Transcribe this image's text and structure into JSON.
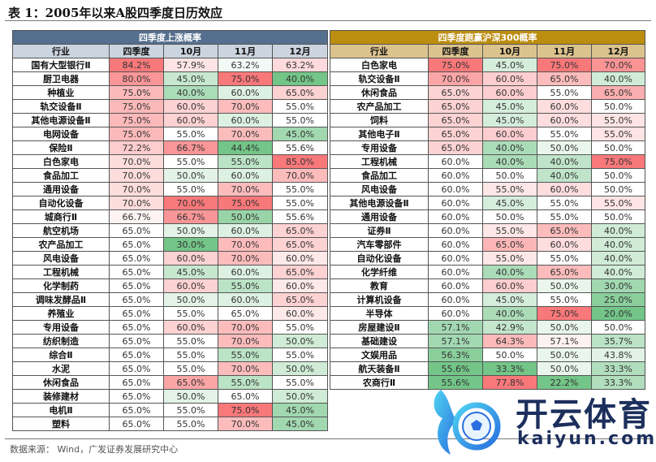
{
  "title": "表 1：2005年以来A股四季度日历效应",
  "columns": [
    "行业",
    "四季度",
    "10月",
    "11月",
    "12月"
  ],
  "left_table": {
    "band": "四季度上涨概率",
    "rows": [
      [
        "国有大型银行Ⅱ",
        "84.2%",
        "57.9%",
        "63.2%",
        "63.2%"
      ],
      [
        "厨卫电器",
        "80.0%",
        "45.0%",
        "75.0%",
        "40.0%"
      ],
      [
        "种植业",
        "75.0%",
        "40.0%",
        "60.0%",
        "65.0%"
      ],
      [
        "轨交设备Ⅱ",
        "75.0%",
        "60.0%",
        "70.0%",
        "55.0%"
      ],
      [
        "其他电源设备Ⅱ",
        "75.0%",
        "60.0%",
        "60.0%",
        "55.0%"
      ],
      [
        "电网设备",
        "75.0%",
        "55.0%",
        "70.0%",
        "45.0%"
      ],
      [
        "保险Ⅱ",
        "72.2%",
        "66.7%",
        "44.4%",
        "55.6%"
      ],
      [
        "白色家电",
        "70.0%",
        "55.0%",
        "55.0%",
        "85.0%"
      ],
      [
        "食品加工",
        "70.0%",
        "50.0%",
        "60.0%",
        "70.0%"
      ],
      [
        "通用设备",
        "70.0%",
        "55.0%",
        "70.0%",
        "55.0%"
      ],
      [
        "自动化设备",
        "70.0%",
        "70.0%",
        "75.0%",
        "55.0%"
      ],
      [
        "城商行Ⅱ",
        "66.7%",
        "66.7%",
        "50.0%",
        "55.6%"
      ],
      [
        "航空机场",
        "65.0%",
        "50.0%",
        "60.0%",
        "65.0%"
      ],
      [
        "农产品加工",
        "65.0%",
        "30.0%",
        "70.0%",
        "65.0%"
      ],
      [
        "风电设备",
        "65.0%",
        "60.0%",
        "70.0%",
        "60.0%"
      ],
      [
        "工程机械",
        "65.0%",
        "45.0%",
        "60.0%",
        "65.0%"
      ],
      [
        "化学制药",
        "65.0%",
        "60.0%",
        "55.0%",
        "60.0%"
      ],
      [
        "调味发酵品Ⅱ",
        "65.0%",
        "50.0%",
        "60.0%",
        "65.0%"
      ],
      [
        "养殖业",
        "65.0%",
        "55.0%",
        "65.0%",
        "60.0%"
      ],
      [
        "专用设备",
        "65.0%",
        "60.0%",
        "70.0%",
        "55.0%"
      ],
      [
        "纺织制造",
        "65.0%",
        "55.0%",
        "70.0%",
        "50.0%"
      ],
      [
        "综合Ⅱ",
        "65.0%",
        "55.0%",
        "55.0%",
        "55.0%"
      ],
      [
        "水泥",
        "65.0%",
        "55.0%",
        "70.0%",
        "50.0%"
      ],
      [
        "休闲食品",
        "65.0%",
        "65.0%",
        "55.0%",
        "55.0%"
      ],
      [
        "装修建材",
        "65.0%",
        "50.0%",
        "65.0%",
        "50.0%"
      ],
      [
        "电机Ⅱ",
        "65.0%",
        "55.0%",
        "75.0%",
        "45.0%"
      ],
      [
        "塑料",
        "65.0%",
        "55.0%",
        "70.0%",
        "45.0%"
      ]
    ]
  },
  "right_table": {
    "band": "四季度跑赢沪深300概率",
    "rows": [
      [
        "白色家电",
        "75.0%",
        "45.0%",
        "75.0%",
        "70.0%"
      ],
      [
        "轨交设备Ⅱ",
        "70.0%",
        "60.0%",
        "65.0%",
        "40.0%"
      ],
      [
        "休闲食品",
        "65.0%",
        "60.0%",
        "55.0%",
        "65.0%"
      ],
      [
        "农产品加工",
        "65.0%",
        "45.0%",
        "60.0%",
        "50.0%"
      ],
      [
        "饲料",
        "65.0%",
        "45.0%",
        "60.0%",
        "55.0%"
      ],
      [
        "其他电子Ⅱ",
        "65.0%",
        "60.0%",
        "55.0%",
        "55.0%"
      ],
      [
        "专用设备",
        "65.0%",
        "40.0%",
        "50.0%",
        "50.0%"
      ],
      [
        "工程机械",
        "60.0%",
        "40.0%",
        "40.0%",
        "75.0%"
      ],
      [
        "食品加工",
        "60.0%",
        "50.0%",
        "40.0%",
        "50.0%"
      ],
      [
        "风电设备",
        "60.0%",
        "55.0%",
        "60.0%",
        "50.0%"
      ],
      [
        "其他电源设备Ⅱ",
        "60.0%",
        "45.0%",
        "55.0%",
        "55.0%"
      ],
      [
        "通用设备",
        "60.0%",
        "50.0%",
        "55.0%",
        "50.0%"
      ],
      [
        "证券Ⅱ",
        "60.0%",
        "55.0%",
        "65.0%",
        "40.0%"
      ],
      [
        "汽车零部件",
        "60.0%",
        "65.0%",
        "60.0%",
        "40.0%"
      ],
      [
        "自动化设备",
        "60.0%",
        "55.0%",
        "55.0%",
        "40.0%"
      ],
      [
        "化学纤维",
        "60.0%",
        "40.0%",
        "65.0%",
        "40.0%"
      ],
      [
        "教育",
        "60.0%",
        "60.0%",
        "50.0%",
        "30.0%"
      ],
      [
        "计算机设备",
        "60.0%",
        "45.0%",
        "55.0%",
        "25.0%"
      ],
      [
        "半导体",
        "60.0%",
        "40.0%",
        "75.0%",
        "20.0%"
      ],
      [
        "房屋建设Ⅱ",
        "57.1%",
        "42.9%",
        "50.0%",
        "50.0%"
      ],
      [
        "基础建设",
        "57.1%",
        "64.3%",
        "57.1%",
        "35.7%"
      ],
      [
        "文娱用品",
        "56.3%",
        "50.0%",
        "50.0%",
        "43.8%"
      ],
      [
        "航天装备Ⅱ",
        "55.6%",
        "33.3%",
        "50.0%",
        "33.3%"
      ],
      [
        "农商行Ⅱ",
        "55.6%",
        "77.8%",
        "22.2%",
        "33.3%"
      ]
    ]
  },
  "source": "数据来源： Wind，广发证券发展研究中心",
  "watermark": {
    "cn": "开云体育",
    "en": "kaiyun.com"
  },
  "colors": {
    "high": "#f8696b",
    "mid": "#ffffff",
    "low": "#63be7b",
    "left_band": "#556f8e",
    "right_band": "#bc8e10"
  }
}
